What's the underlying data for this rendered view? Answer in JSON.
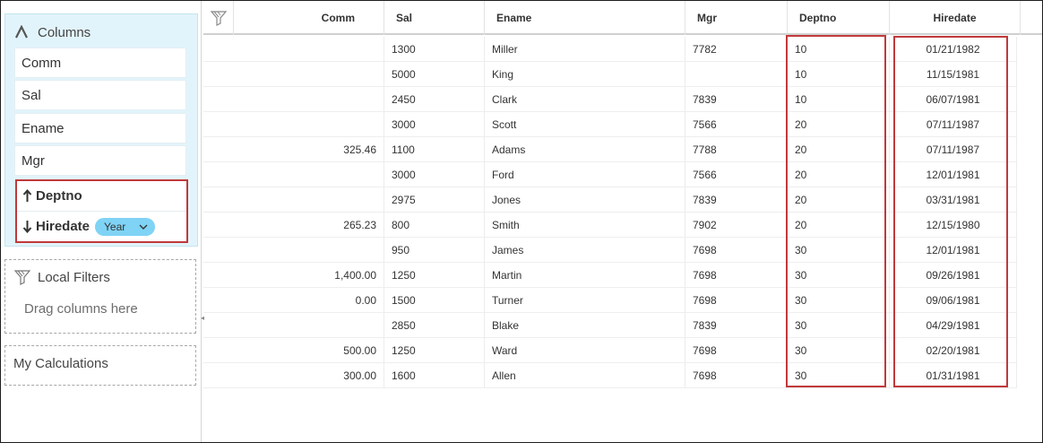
{
  "colors": {
    "highlight": "#c0393b",
    "panel_bg": "#e2f4fb",
    "pill_bg": "#7fd3f5"
  },
  "columns_panel": {
    "title": "Columns",
    "items": [
      "Comm",
      "Sal",
      "Ename",
      "Mgr"
    ],
    "sorted_items": [
      {
        "label": "Deptno",
        "direction": "ascending"
      },
      {
        "label": "Hiredate",
        "direction": "descending",
        "granularity": "Year"
      }
    ]
  },
  "local_filters": {
    "title": "Local Filters",
    "hint": "Drag columns here"
  },
  "calculations": {
    "title": "My Calculations"
  },
  "table": {
    "headers": [
      "Comm",
      "Sal",
      "Ename",
      "Mgr",
      "Deptno",
      "Hiredate"
    ],
    "rows": [
      [
        "",
        "1300",
        "Miller",
        "7782",
        "10",
        "01/21/1982"
      ],
      [
        "",
        "5000",
        "King",
        "",
        "10",
        "11/15/1981"
      ],
      [
        "",
        "2450",
        "Clark",
        "7839",
        "10",
        "06/07/1981"
      ],
      [
        "",
        "3000",
        "Scott",
        "7566",
        "20",
        "07/11/1987"
      ],
      [
        "325.46",
        "1100",
        "Adams",
        "7788",
        "20",
        "07/11/1987"
      ],
      [
        "",
        "3000",
        "Ford",
        "7566",
        "20",
        "12/01/1981"
      ],
      [
        "",
        "2975",
        "Jones",
        "7839",
        "20",
        "03/31/1981"
      ],
      [
        "265.23",
        "800",
        "Smith",
        "7902",
        "20",
        "12/15/1980"
      ],
      [
        "",
        "950",
        "James",
        "7698",
        "30",
        "12/01/1981"
      ],
      [
        "1,400.00",
        "1250",
        "Martin",
        "7698",
        "30",
        "09/26/1981"
      ],
      [
        "0.00",
        "1500",
        "Turner",
        "7698",
        "30",
        "09/06/1981"
      ],
      [
        "",
        "2850",
        "Blake",
        "7839",
        "30",
        "04/29/1981"
      ],
      [
        "500.00",
        "1250",
        "Ward",
        "7698",
        "30",
        "02/20/1981"
      ],
      [
        "300.00",
        "1600",
        "Allen",
        "7698",
        "30",
        "01/31/1981"
      ]
    ]
  }
}
